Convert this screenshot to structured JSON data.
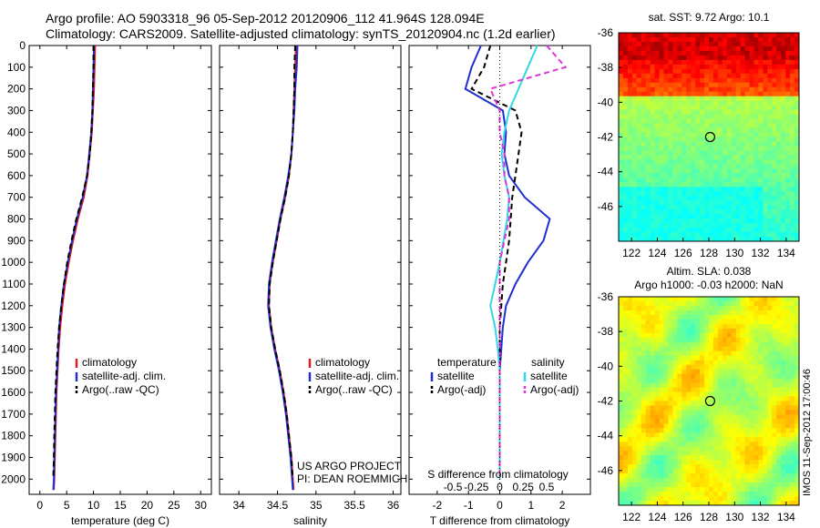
{
  "header": {
    "title": "Argo profile: AO 5903318_96 05-Sep-2012 20120906_112 41.964S 128.094E",
    "subtitle": "Climatology: CARS2009. Satellite-adjusted climatology: synTS_20120904.nc (1.2d earlier)"
  },
  "colors": {
    "climatology": "#e41a1c",
    "satellite": "#1f2fd0",
    "argo": "#000000",
    "satellite_salinity": "#33d6e6",
    "argo_salinity_adj": "#e033d8"
  },
  "stamp": "IMOS 11-Sep-2012 17:00:46",
  "chart_data": [
    {
      "type": "line",
      "xlabel": "temperature (deg C)",
      "ylabel": "",
      "xlim": [
        -2,
        32
      ],
      "ylim": [
        2070,
        0
      ],
      "xticks": [
        0,
        5,
        10,
        15,
        20,
        25,
        30
      ],
      "yticks": [
        0,
        100,
        200,
        300,
        400,
        500,
        600,
        700,
        800,
        900,
        1000,
        1100,
        1200,
        1300,
        1400,
        1500,
        1600,
        1700,
        1800,
        1900,
        2000
      ],
      "legend_position": "bottom-center",
      "series": [
        {
          "name": "climatology",
          "color": "#e41a1c",
          "style": "solid",
          "x": [
            10.3,
            10.2,
            10.1,
            9.9,
            9.7,
            9.3,
            8.9,
            8.2,
            7.1,
            6.2,
            5.4,
            4.7,
            4.2,
            3.8,
            3.5,
            3.3,
            3.1,
            3.0,
            2.9,
            2.8,
            2.7,
            2.6
          ],
          "y": [
            0,
            100,
            200,
            300,
            400,
            500,
            600,
            700,
            800,
            900,
            1000,
            1100,
            1200,
            1300,
            1400,
            1500,
            1600,
            1700,
            1800,
            1900,
            2000,
            2050
          ]
        },
        {
          "name": "satellite-adj. clim.",
          "color": "#1f2fd0",
          "style": "solid",
          "x": [
            10.1,
            10.0,
            9.9,
            9.8,
            9.6,
            9.2,
            8.8,
            8.0,
            6.9,
            6.0,
            5.2,
            4.5,
            4.0,
            3.6,
            3.4,
            3.2,
            3.0,
            2.9,
            2.8,
            2.7,
            2.6,
            2.5
          ],
          "y": [
            0,
            100,
            200,
            300,
            400,
            500,
            600,
            700,
            800,
            900,
            1000,
            1100,
            1200,
            1300,
            1400,
            1500,
            1600,
            1700,
            1800,
            1900,
            2000,
            2050
          ]
        },
        {
          "name": "Argo(..raw -QC)",
          "color": "#000000",
          "style": "dashed",
          "x": [
            10.0,
            10.0,
            9.9,
            9.8,
            9.6,
            9.3,
            8.8,
            7.9,
            6.8,
            5.9,
            5.1,
            4.5,
            4.0,
            3.6,
            3.3,
            3.1,
            2.9,
            2.8,
            2.7,
            2.6,
            2.5
          ],
          "y": [
            0,
            100,
            200,
            300,
            400,
            500,
            600,
            700,
            800,
            900,
            1000,
            1100,
            1200,
            1300,
            1400,
            1500,
            1600,
            1700,
            1800,
            1900,
            2000
          ]
        }
      ]
    },
    {
      "type": "line",
      "xlabel": "salinity",
      "xlim": [
        33.75,
        36.1
      ],
      "ylim": [
        2070,
        0
      ],
      "xticks": [
        34,
        34.5,
        35,
        35.5,
        36
      ],
      "xticklabels": [
        "34",
        "34.5",
        "35",
        "35.5",
        "36"
      ],
      "legend_position": "bottom-center",
      "annotation": [
        "US ARGO PROJECT",
        "PI: DEAN ROEMMICH"
      ],
      "series": [
        {
          "name": "climatology",
          "color": "#e41a1c",
          "style": "solid",
          "x": [
            34.74,
            34.73,
            34.72,
            34.71,
            34.7,
            34.68,
            34.65,
            34.6,
            34.54,
            34.49,
            34.44,
            34.4,
            34.39,
            34.42,
            34.47,
            34.53,
            34.58,
            34.62,
            34.65,
            34.68,
            34.7,
            34.71
          ],
          "y": [
            0,
            100,
            200,
            300,
            400,
            500,
            600,
            700,
            800,
            900,
            1000,
            1100,
            1200,
            1300,
            1400,
            1500,
            1600,
            1700,
            1800,
            1900,
            2000,
            2050
          ]
        },
        {
          "name": "satellite-adj. clim.",
          "color": "#1f2fd0",
          "style": "solid",
          "x": [
            34.76,
            34.75,
            34.73,
            34.72,
            34.7,
            34.68,
            34.64,
            34.59,
            34.53,
            34.48,
            34.43,
            34.39,
            34.38,
            34.41,
            34.46,
            34.52,
            34.57,
            34.61,
            34.64,
            34.67,
            34.69,
            34.7
          ],
          "y": [
            0,
            100,
            200,
            300,
            400,
            500,
            600,
            700,
            800,
            900,
            1000,
            1100,
            1200,
            1300,
            1400,
            1500,
            1600,
            1700,
            1800,
            1900,
            2000,
            2050
          ]
        },
        {
          "name": "Argo(..raw -QC)",
          "color": "#000000",
          "style": "dashed",
          "x": [
            34.73,
            34.72,
            34.72,
            34.71,
            34.7,
            34.68,
            34.65,
            34.6,
            34.54,
            34.49,
            34.44,
            34.4,
            34.39,
            34.42,
            34.47,
            34.53,
            34.58,
            34.62,
            34.65,
            34.68,
            34.7
          ],
          "y": [
            0,
            100,
            200,
            300,
            400,
            500,
            600,
            700,
            800,
            900,
            1000,
            1100,
            1200,
            1300,
            1400,
            1500,
            1600,
            1700,
            1800,
            1900,
            2000
          ]
        }
      ]
    },
    {
      "type": "line",
      "xlabel": "T difference from climatology",
      "xlabel_top": "S difference from climatology",
      "xlim": [
        -2.9,
        2.9
      ],
      "ylim": [
        2070,
        0
      ],
      "xticks": [
        -2,
        -1,
        0,
        1,
        2
      ],
      "xticks_s": [
        -0.5,
        -0.25,
        0,
        0.25,
        0.5
      ],
      "xticklabels_s": [
        "-0.5",
        "-0.25",
        "0",
        "0.25",
        "0.5"
      ],
      "legend_headers": [
        "temperature",
        "salinity"
      ],
      "legend_position": "bottom",
      "series": [
        {
          "name": "satellite",
          "group": "temperature",
          "color": "#1f2fd0",
          "style": "solid",
          "x": [
            -0.6,
            -0.9,
            -1.1,
            0.1,
            0.2,
            0.15,
            0.3,
            0.8,
            1.6,
            1.4,
            0.9,
            0.5,
            0.2,
            0.1,
            0.05,
            0.0,
            0.0,
            0.0,
            0.0,
            0.0,
            0.0
          ],
          "y": [
            0,
            100,
            200,
            300,
            400,
            500,
            600,
            700,
            800,
            900,
            1000,
            1100,
            1200,
            1300,
            1400,
            1500,
            1600,
            1700,
            1800,
            1900,
            2000
          ]
        },
        {
          "name": "Argo(-adj)",
          "group": "temperature",
          "color": "#000000",
          "style": "dashed",
          "x": [
            -0.3,
            -0.5,
            -0.9,
            0.5,
            0.7,
            0.6,
            0.5,
            0.4,
            0.35,
            0.3,
            0.2,
            0.1,
            0.05,
            0.0,
            0.0,
            0.0,
            0.0,
            0.0,
            0.0,
            0.0,
            0.0
          ],
          "y": [
            0,
            100,
            200,
            300,
            400,
            500,
            600,
            700,
            800,
            900,
            1000,
            1100,
            1200,
            1300,
            1400,
            1500,
            1600,
            1700,
            1800,
            1900,
            2000
          ]
        },
        {
          "name": "satellite",
          "group": "salinity",
          "color": "#33d6e6",
          "style": "solid",
          "x": [
            0.4,
            0.3,
            0.2,
            0.1,
            0.05,
            0.02,
            0.05,
            0.1,
            0.08,
            0.04,
            0.0,
            -0.05,
            -0.1,
            -0.05,
            -0.02,
            0.0,
            0.0,
            0.0,
            0.0,
            0.0,
            0.0
          ],
          "y": [
            0,
            100,
            200,
            300,
            400,
            500,
            600,
            700,
            800,
            900,
            1000,
            1100,
            1200,
            1300,
            1400,
            1500,
            1600,
            1700,
            1800,
            1900,
            2000
          ]
        },
        {
          "name": "Argo(-adj)",
          "group": "salinity",
          "color": "#e033d8",
          "style": "dashed",
          "x": [
            0.5,
            0.7,
            -0.1,
            0.0,
            0.0,
            0.05,
            0.05,
            0.1,
            0.1,
            0.05,
            0.0,
            0.0,
            0.0,
            0.0,
            0.0,
            0.0,
            0.0,
            0.0,
            0.0,
            0.0,
            0.0
          ],
          "y": [
            0,
            100,
            200,
            300,
            400,
            500,
            600,
            700,
            800,
            900,
            1000,
            1100,
            1200,
            1300,
            1400,
            1500,
            1600,
            1700,
            1800,
            1900,
            2000
          ]
        }
      ]
    },
    {
      "type": "heatmap",
      "title": "sat. SST: 9.72  Argo: 10.1",
      "xlim": [
        121,
        135
      ],
      "ylim": [
        -48,
        -36
      ],
      "xticks": [
        122,
        124,
        126,
        128,
        130,
        132,
        134
      ],
      "yticks": [
        -36,
        -38,
        -40,
        -42,
        -44,
        -46
      ],
      "marker": {
        "lon": 128.1,
        "lat": -42.0
      },
      "colormap": "jet"
    },
    {
      "type": "heatmap",
      "title": "Altim. SLA: 0.038",
      "subtitle": "Argo h1000: -0.03 h2000: NaN",
      "xlim": [
        121,
        135
      ],
      "ylim": [
        -48,
        -36
      ],
      "xticks": [
        122,
        124,
        126,
        128,
        130,
        132,
        134
      ],
      "yticks": [
        -36,
        -38,
        -40,
        -42,
        -44,
        -46
      ],
      "marker": {
        "lon": 128.1,
        "lat": -42.0
      },
      "colormap": "jet"
    }
  ]
}
